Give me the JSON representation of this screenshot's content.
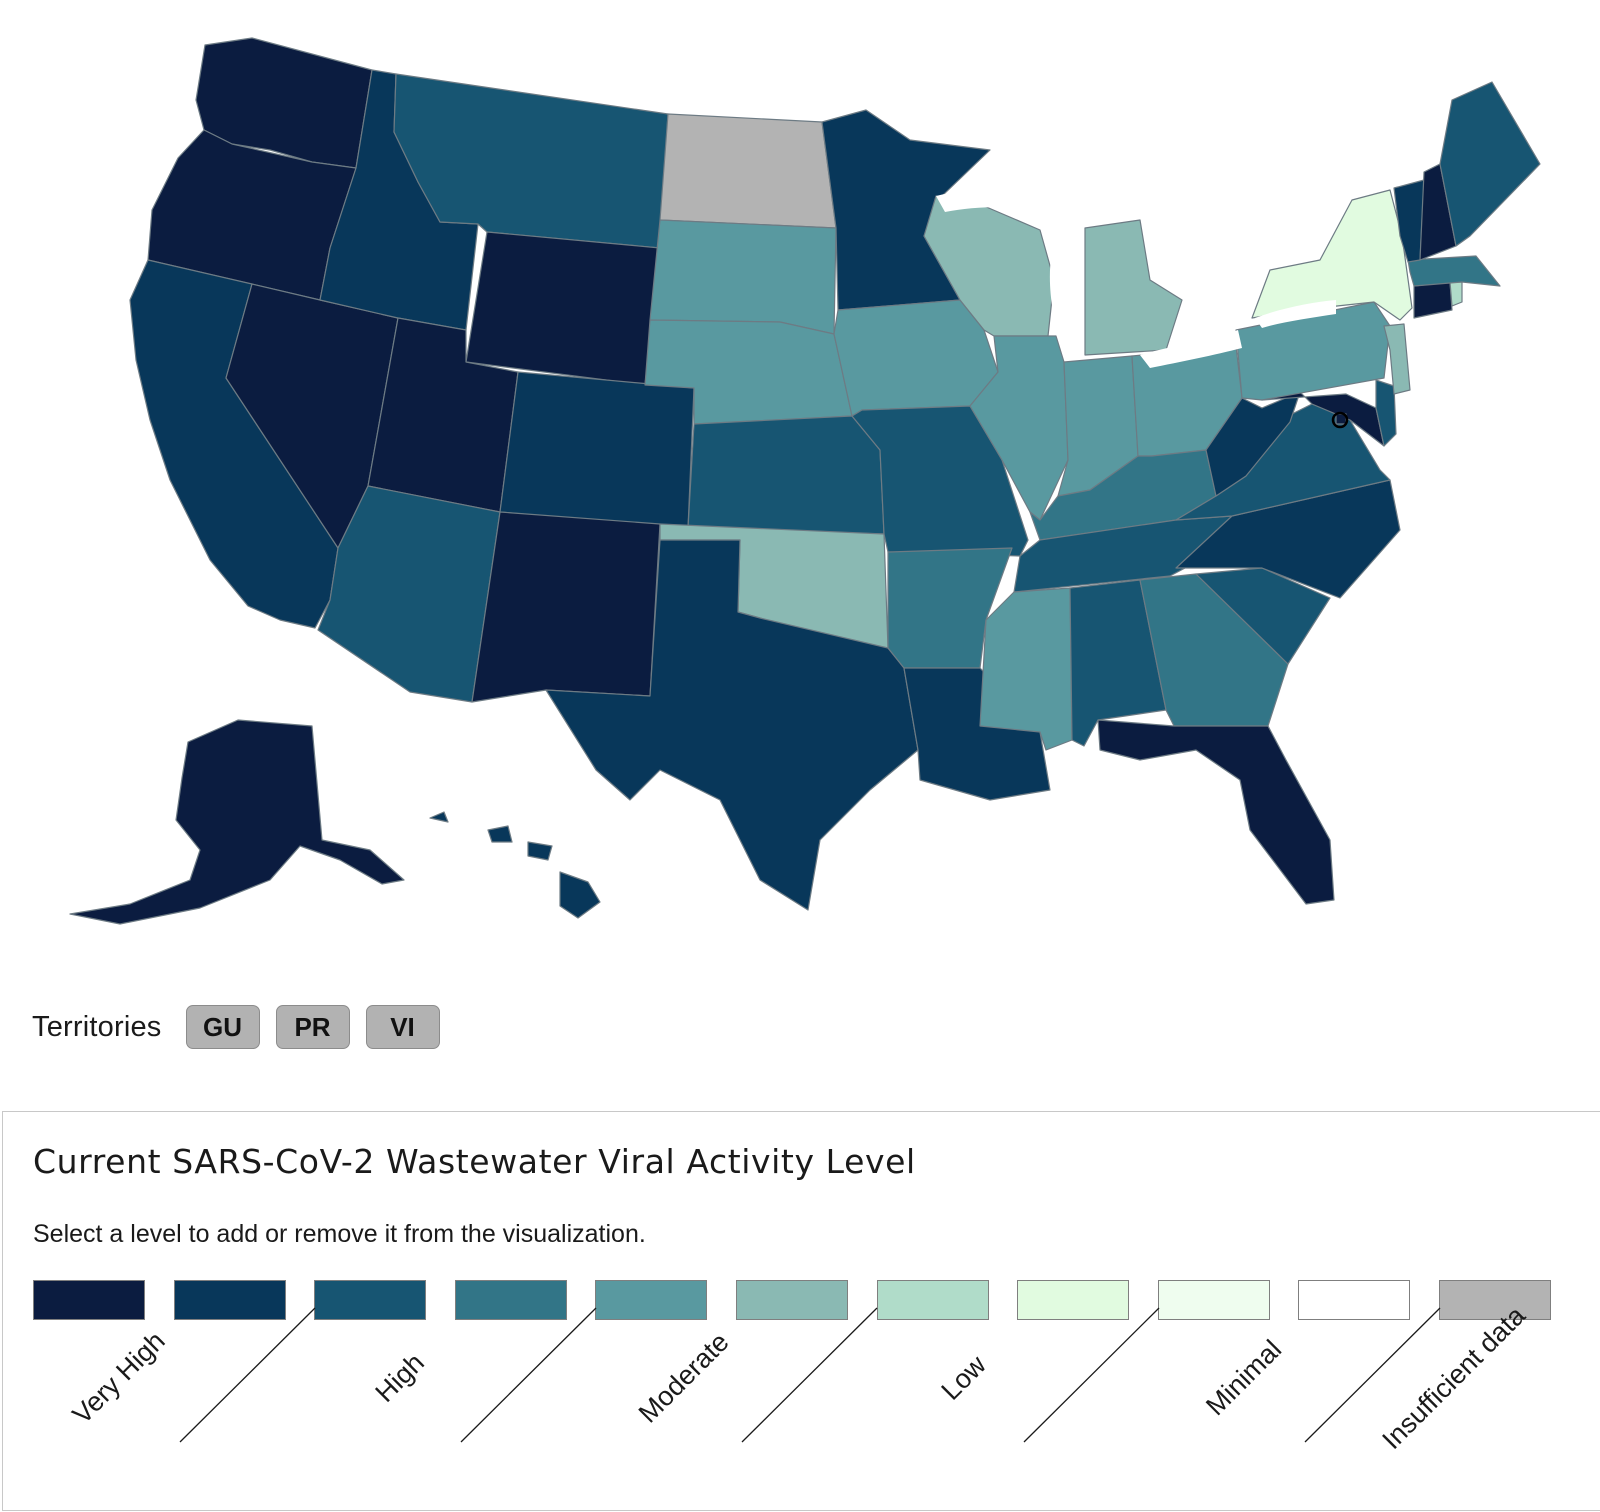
{
  "map": {
    "states": [
      {
        "id": "WA",
        "color": "#0b1c40"
      },
      {
        "id": "OR",
        "color": "#0b1c40"
      },
      {
        "id": "CA",
        "color": "#08375a"
      },
      {
        "id": "NV",
        "color": "#0b1c40"
      },
      {
        "id": "ID",
        "color": "#08375a"
      },
      {
        "id": "MT",
        "color": "#175572"
      },
      {
        "id": "WY",
        "color": "#0b1c40"
      },
      {
        "id": "UT",
        "color": "#0b1c40"
      },
      {
        "id": "AZ",
        "color": "#175572"
      },
      {
        "id": "CO",
        "color": "#08375a"
      },
      {
        "id": "NM",
        "color": "#0b1c40"
      },
      {
        "id": "ND",
        "color": "#b3b3b3"
      },
      {
        "id": "SD",
        "color": "#5999a0"
      },
      {
        "id": "NE",
        "color": "#5999a0"
      },
      {
        "id": "KS",
        "color": "#175572"
      },
      {
        "id": "OK",
        "color": "#8ab9b3"
      },
      {
        "id": "TX",
        "color": "#08375a"
      },
      {
        "id": "MN",
        "color": "#08375a"
      },
      {
        "id": "IA",
        "color": "#5999a0"
      },
      {
        "id": "MO",
        "color": "#175572"
      },
      {
        "id": "AR",
        "color": "#327587"
      },
      {
        "id": "LA",
        "color": "#08375a"
      },
      {
        "id": "WI",
        "color": "#8ab9b3"
      },
      {
        "id": "IL",
        "color": "#5999a0"
      },
      {
        "id": "MI",
        "color": "#8ab9b3"
      },
      {
        "id": "IN",
        "color": "#5999a0"
      },
      {
        "id": "OH",
        "color": "#5999a0"
      },
      {
        "id": "KY",
        "color": "#327587"
      },
      {
        "id": "TN",
        "color": "#175572"
      },
      {
        "id": "MS",
        "color": "#5999a0"
      },
      {
        "id": "AL",
        "color": "#175572"
      },
      {
        "id": "GA",
        "color": "#327587"
      },
      {
        "id": "FL",
        "color": "#0b1c40"
      },
      {
        "id": "SC",
        "color": "#175572"
      },
      {
        "id": "NC",
        "color": "#08375a"
      },
      {
        "id": "VA",
        "color": "#175572"
      },
      {
        "id": "WV",
        "color": "#08375a"
      },
      {
        "id": "MD",
        "color": "#0b1c40"
      },
      {
        "id": "DE",
        "color": "#175572"
      },
      {
        "id": "PA",
        "color": "#5999a0"
      },
      {
        "id": "NJ",
        "color": "#8ab9b3"
      },
      {
        "id": "NY",
        "color": "#e1fbe0"
      },
      {
        "id": "CT",
        "color": "#0b1c40"
      },
      {
        "id": "RI",
        "color": "#b0dcc9"
      },
      {
        "id": "MA",
        "color": "#327587"
      },
      {
        "id": "VT",
        "color": "#08375a"
      },
      {
        "id": "NH",
        "color": "#0b1c40"
      },
      {
        "id": "ME",
        "color": "#175572"
      },
      {
        "id": "AK",
        "color": "#0b1c40"
      },
      {
        "id": "HI",
        "color": "#08375a"
      },
      {
        "id": "DC",
        "color": "#0b1c40"
      }
    ]
  },
  "territories": {
    "label": "Territories",
    "items": [
      {
        "code": "GU",
        "color": "#b2b2b2"
      },
      {
        "code": "PR",
        "color": "#b2b2b2"
      },
      {
        "code": "VI",
        "color": "#b2b2b2"
      }
    ]
  },
  "legend": {
    "title": "Current SARS-CoV-2 Wastewater Viral Activity Level",
    "instruction": "Select a level to add or remove it from the visualization.",
    "swatch_colors": [
      "#0b1c40",
      "#08375a",
      "#175572",
      "#327587",
      "#5999a0",
      "#8ab9b3",
      "#b0dcc9",
      "#e1fbe0",
      "#effdef",
      "#ffffff",
      "#b3b3b3"
    ],
    "levels": [
      "Very High",
      "High",
      "Moderate",
      "Low",
      "Minimal",
      "Insufficient data"
    ]
  }
}
